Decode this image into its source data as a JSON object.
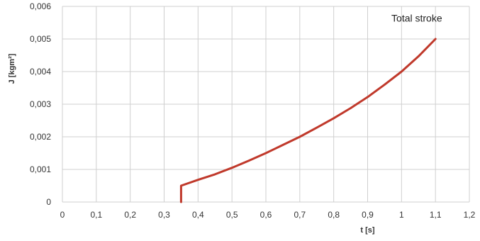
{
  "chart_data": {
    "type": "line",
    "title": "",
    "xlabel": "t [s]",
    "ylabel": "J [kgm²]",
    "xlim": [
      0,
      1.2
    ],
    "ylim": [
      0,
      0.006
    ],
    "x_ticks": [
      "0",
      "0,1",
      "0,2",
      "0,3",
      "0,4",
      "0,5",
      "0,6",
      "0,7",
      "0,8",
      "0,9",
      "1",
      "1,1",
      "1,2"
    ],
    "x_tick_values": [
      0,
      0.1,
      0.2,
      0.3,
      0.4,
      0.5,
      0.6,
      0.7,
      0.8,
      0.9,
      1.0,
      1.1,
      1.2
    ],
    "y_ticks": [
      "0",
      "0,001",
      "0,002",
      "0,003",
      "0,004",
      "0,005",
      "0,006"
    ],
    "y_tick_values": [
      0,
      0.001,
      0.002,
      0.003,
      0.004,
      0.005,
      0.006
    ],
    "grid": true,
    "annotation": "Total stroke",
    "series": [
      {
        "color": "#c0392b",
        "x": [
          0.35,
          0.35,
          0.4,
          0.45,
          0.5,
          0.55,
          0.6,
          0.65,
          0.7,
          0.75,
          0.8,
          0.85,
          0.9,
          0.95,
          1.0,
          1.05,
          1.1
        ],
        "y": [
          0.0,
          0.0005,
          0.00068,
          0.00085,
          0.00105,
          0.00127,
          0.0015,
          0.00175,
          0.002,
          0.00228,
          0.00257,
          0.00288,
          0.00322,
          0.0036,
          0.004,
          0.00447,
          0.005
        ]
      }
    ]
  }
}
